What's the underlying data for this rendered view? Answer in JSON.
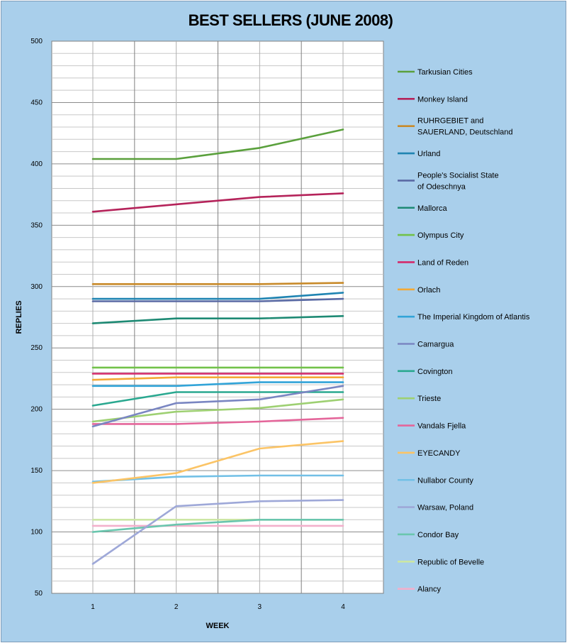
{
  "chart_data": {
    "type": "line",
    "title": "BEST SELLERS (JUNE 2008)",
    "xlabel": "WEEK",
    "ylabel": "REPLIES",
    "categories": [
      "1",
      "2",
      "3",
      "4"
    ],
    "ylim": [
      50,
      500
    ],
    "yticks": [
      50,
      100,
      150,
      200,
      250,
      300,
      350,
      400,
      450,
      500
    ],
    "grid": true,
    "legend_position": "right",
    "series": [
      {
        "name": "Tarkusian Cities",
        "color": "#5aa03c",
        "values": [
          404,
          404,
          413,
          428
        ]
      },
      {
        "name": "Monkey Island",
        "color": "#b5235a",
        "values": [
          361,
          367,
          373,
          376
        ]
      },
      {
        "name": "RUHRGEBIET and SAUERLAND, Deutschland",
        "color": "#c88a2a",
        "values": [
          302,
          302,
          302,
          303
        ]
      },
      {
        "name": "Urland",
        "color": "#1f84b2",
        "values": [
          290,
          290,
          290,
          295
        ]
      },
      {
        "name": "People's Socialist State of Odeschnya",
        "color": "#5a6aa4",
        "values": [
          288,
          288,
          288,
          290
        ]
      },
      {
        "name": "Mallorca",
        "color": "#1e8a74",
        "values": [
          270,
          274,
          274,
          276
        ]
      },
      {
        "name": "Olympus City",
        "color": "#72c24a",
        "values": [
          234,
          234,
          234,
          234
        ]
      },
      {
        "name": "Land of Reden",
        "color": "#d42a6a",
        "values": [
          229,
          229,
          229,
          229
        ]
      },
      {
        "name": "Orlach",
        "color": "#f4a936",
        "values": [
          224,
          226,
          226,
          226
        ]
      },
      {
        "name": "The Imperial Kingdom of Atlantis",
        "color": "#32a4d8",
        "values": [
          219,
          219,
          222,
          222
        ]
      },
      {
        "name": "Camargua",
        "color": "#7a86c2",
        "values": [
          186,
          205,
          208,
          219
        ]
      },
      {
        "name": "Covington",
        "color": "#2aa890",
        "values": [
          203,
          214,
          214,
          214
        ]
      },
      {
        "name": "Trieste",
        "color": "#9ed072",
        "values": [
          190,
          198,
          201,
          208
        ]
      },
      {
        "name": "Vandals Fjella",
        "color": "#e4669a",
        "values": [
          188,
          188,
          190,
          193
        ]
      },
      {
        "name": "EYECANDY",
        "color": "#fbc466",
        "values": [
          140,
          148,
          168,
          174
        ]
      },
      {
        "name": "Nullabor County",
        "color": "#72c0e6",
        "values": [
          141,
          145,
          146,
          146
        ]
      },
      {
        "name": "Warsaw, Poland",
        "color": "#9ea8d8",
        "values": [
          74,
          121,
          125,
          126
        ]
      },
      {
        "name": "Condor Bay",
        "color": "#6ac6ae",
        "values": [
          100,
          106,
          110,
          110
        ]
      },
      {
        "name": "Republic of Bevelle",
        "color": "#cce6a4",
        "values": [
          110,
          110,
          110,
          110
        ]
      },
      {
        "name": "Alancy",
        "color": "#f2b0cc",
        "values": [
          105,
          105,
          105,
          105
        ]
      }
    ]
  }
}
